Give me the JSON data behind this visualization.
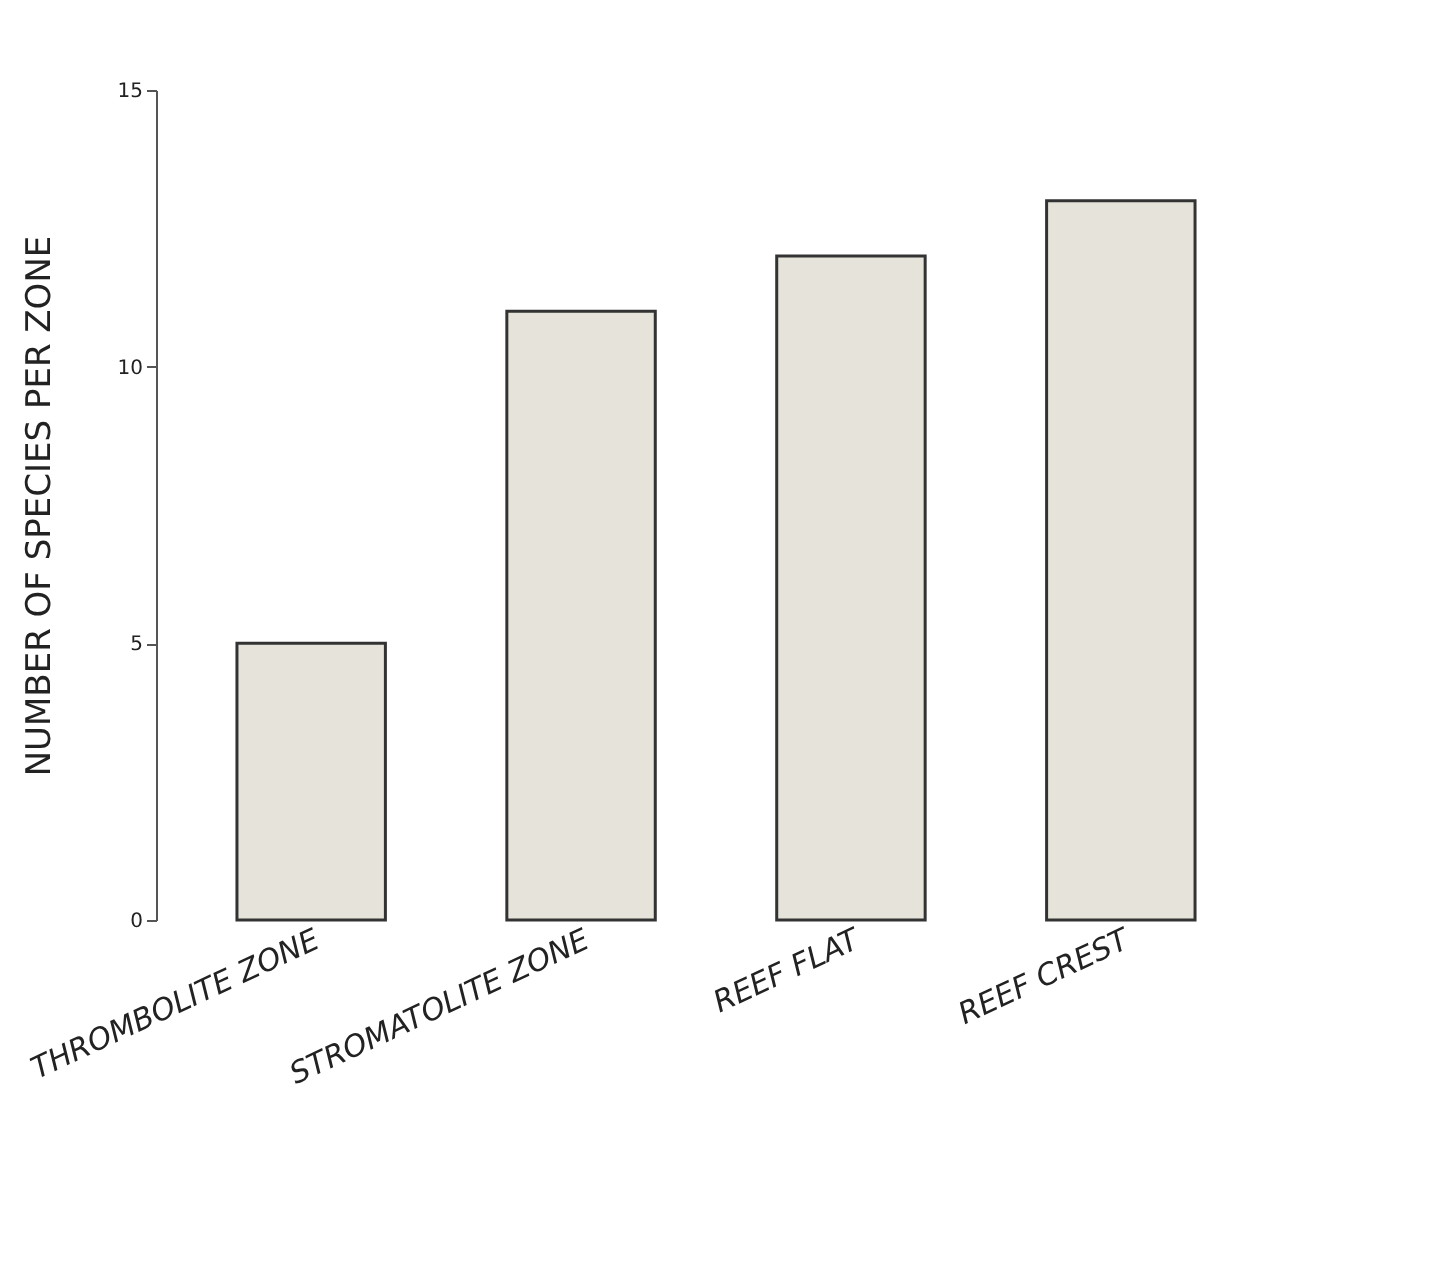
{
  "chart_data": {
    "type": "bar",
    "ylabel": "NUMBER OF SPECIES PER ZONE",
    "categories": [
      "THROMBOLITE ZONE",
      "STROMATOLITE ZONE",
      "REEF FLAT",
      "REEF CREST"
    ],
    "values": [
      5,
      11,
      12,
      13
    ],
    "color": "#e6e4da",
    "ylim": [
      0,
      15
    ],
    "yticks": [
      0,
      5,
      10,
      15
    ],
    "grid": false
  }
}
